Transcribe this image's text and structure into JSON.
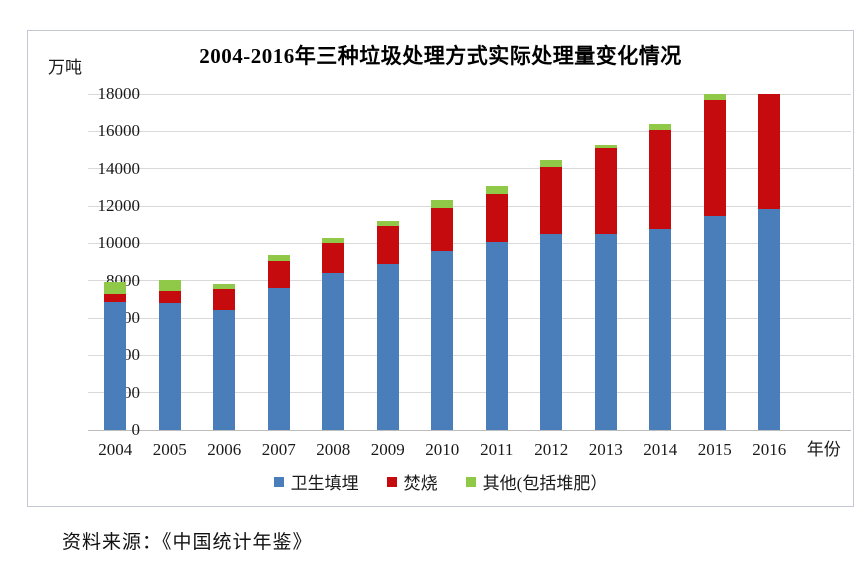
{
  "chart": {
    "title": "2004-2016年三种垃圾处理方式实际处理量变化情况",
    "y_axis_unit_label": "万吨",
    "x_axis_label": "年份",
    "source_note": "资料来源：《中国统计年鉴》"
  },
  "chart_data": {
    "type": "bar",
    "stacked": true,
    "title": "2004-2016年三种垃圾处理方式实际处理量变化情况",
    "categories": [
      "2004",
      "2005",
      "2006",
      "2007",
      "2008",
      "2009",
      "2010",
      "2011",
      "2012",
      "2013",
      "2014",
      "2015",
      "2016"
    ],
    "series": [
      {
        "name": "卫生填埋",
        "color": "#4a7ebb",
        "values": [
          6857,
          6778,
          6408,
          7633,
          8424,
          8899,
          9598,
          10064,
          10513,
          10493,
          10744,
          11483,
          11866
        ]
      },
      {
        "name": "焚烧",
        "color": "#c60b0e",
        "values": [
          449,
          671,
          1138,
          1435,
          1570,
          2022,
          2317,
          2599,
          3584,
          4634,
          5330,
          6176,
          6134
        ]
      },
      {
        "name": "其他(包括堆肥）",
        "color": "#90c848",
        "values": [
          612,
          602,
          292,
          326,
          294,
          281,
          403,
          427,
          354,
          167,
          330,
          354,
          0
        ]
      }
    ],
    "ylabel": "万吨",
    "xlabel": "年份",
    "ylim": [
      0,
      18000
    ],
    "ytick_step": 2000,
    "y_ticks": [
      "0",
      "2000",
      "4000",
      "6000",
      "8000",
      "10000",
      "12000",
      "14000",
      "16000",
      "18000"
    ],
    "grid": true,
    "legend_position": "bottom",
    "note": "2016 bar reaches the 18000 axis maximum; its red segment appears truncated at the top of the plot and no green segment is visible"
  }
}
